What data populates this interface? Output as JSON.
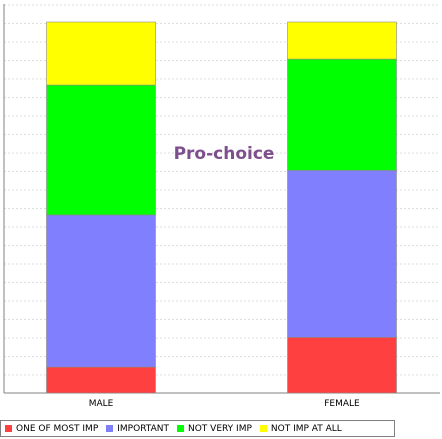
{
  "chart_data": {
    "type": "bar",
    "stacked": true,
    "categories": [
      "MALE",
      "FEMALE"
    ],
    "series": [
      {
        "name": "ONE OF MOST IMP",
        "color": "#ff4040",
        "values": [
          0.07,
          0.15
        ]
      },
      {
        "name": "IMPORTANT",
        "color": "#8080ff",
        "values": [
          0.41,
          0.45
        ]
      },
      {
        "name": "NOT VERY IMP",
        "color": "#00ff00",
        "values": [
          0.35,
          0.3
        ]
      },
      {
        "name": "NOT IMP AT ALL",
        "color": "#ffff00",
        "values": [
          0.17,
          0.1
        ]
      }
    ],
    "annotation": "Pro-choice",
    "ylim": [
      0,
      1
    ],
    "grid": true,
    "legend_position": "bottom"
  }
}
